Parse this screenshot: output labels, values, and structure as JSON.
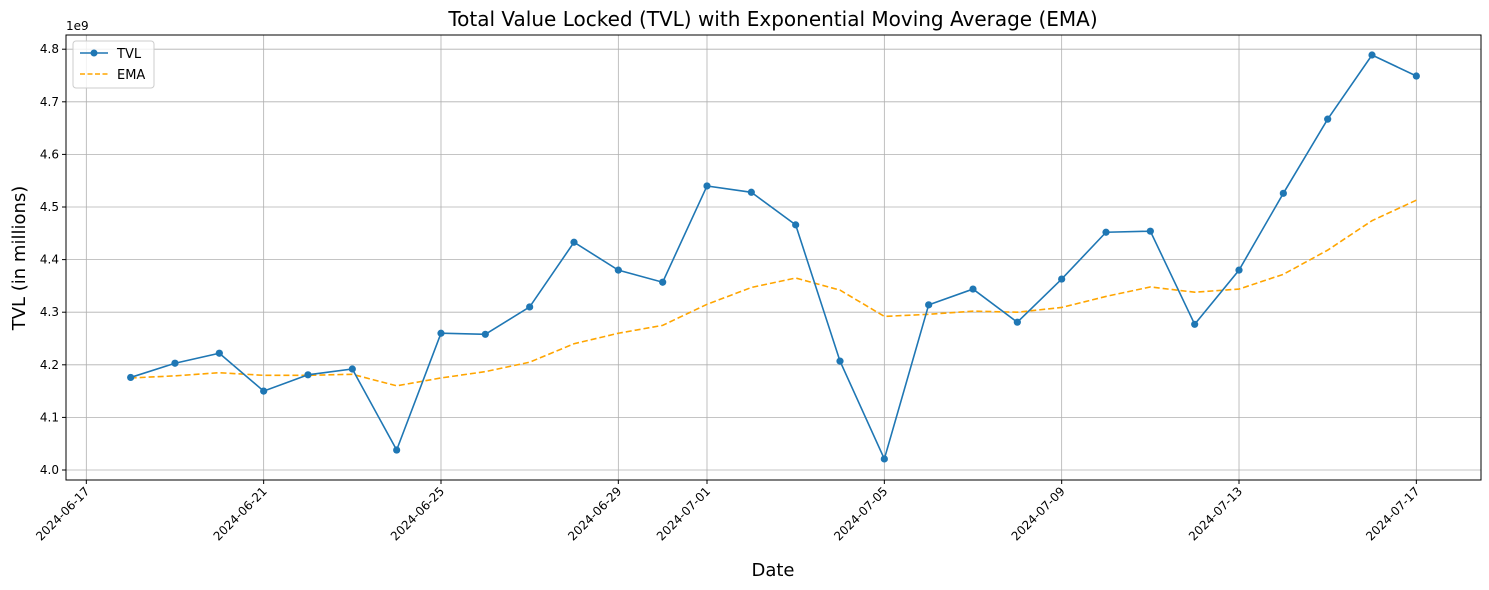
{
  "chart_data": {
    "type": "line",
    "title": "Total Value Locked (TVL) with Exponential Moving Average (EMA)",
    "xlabel": "Date",
    "ylabel": "TVL (in millions)",
    "y_offset_label": "1e9",
    "xlim": [
      "2024-06-16T13:00",
      "2024-07-18T11:00"
    ],
    "ylim": [
      3.981,
      4.827
    ],
    "grid": true,
    "legend": "top-left",
    "x_ticks": [
      "2024-06-17",
      "2024-06-21",
      "2024-06-25",
      "2024-06-29",
      "2024-07-01",
      "2024-07-05",
      "2024-07-09",
      "2024-07-13",
      "2024-07-17"
    ],
    "y_ticks": [
      "4.0",
      "4.1",
      "4.2",
      "4.3",
      "4.4",
      "4.5",
      "4.6",
      "4.7",
      "4.8"
    ],
    "x": [
      "2024-06-18",
      "2024-06-19",
      "2024-06-20",
      "2024-06-21",
      "2024-06-22",
      "2024-06-23",
      "2024-06-24",
      "2024-06-25",
      "2024-06-26",
      "2024-06-27",
      "2024-06-28",
      "2024-06-29",
      "2024-06-30",
      "2024-07-01",
      "2024-07-02",
      "2024-07-03",
      "2024-07-04",
      "2024-07-05",
      "2024-07-06",
      "2024-07-07",
      "2024-07-08",
      "2024-07-09",
      "2024-07-10",
      "2024-07-11",
      "2024-07-12",
      "2024-07-13",
      "2024-07-14",
      "2024-07-15",
      "2024-07-16",
      "2024-07-17"
    ],
    "series": [
      {
        "name": "TVL",
        "color": "#1f77b4",
        "style": "solid-markers",
        "values": [
          4.176,
          4.203,
          4.222,
          4.15,
          4.181,
          4.192,
          4.038,
          4.26,
          4.258,
          4.31,
          4.433,
          4.38,
          4.357,
          4.54,
          4.528,
          4.466,
          4.207,
          4.021,
          4.314,
          4.344,
          4.281,
          4.363,
          4.452,
          4.454,
          4.277,
          4.38,
          4.526,
          4.667,
          4.789,
          4.749
        ]
      },
      {
        "name": "EMA",
        "color": "#ffa500",
        "style": "dashed",
        "values": [
          4.175,
          4.179,
          4.185,
          4.18,
          4.18,
          4.182,
          4.16,
          4.175,
          4.187,
          4.205,
          4.24,
          4.26,
          4.275,
          4.315,
          4.347,
          4.365,
          4.342,
          4.292,
          4.296,
          4.302,
          4.3,
          4.309,
          4.33,
          4.348,
          4.338,
          4.344,
          4.372,
          4.418,
          4.474,
          4.513
        ]
      }
    ]
  }
}
